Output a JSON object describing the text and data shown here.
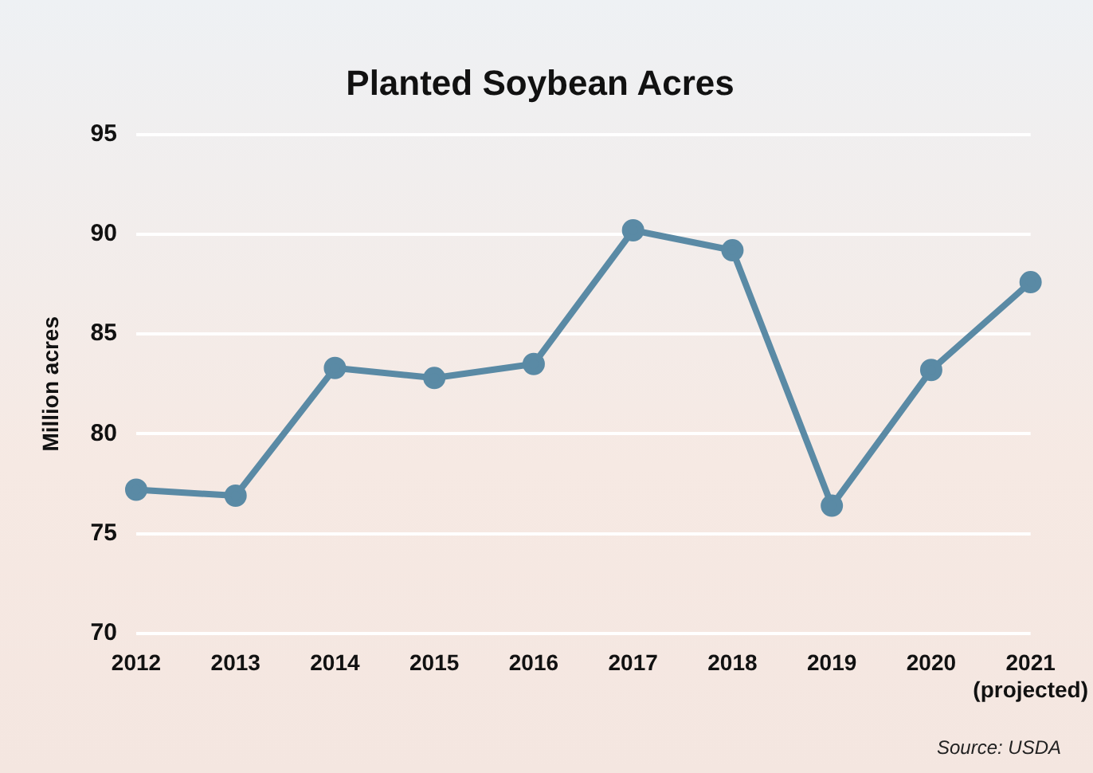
{
  "chart_data": {
    "type": "line",
    "title": "Planted Soybean Acres",
    "ylabel": "Million acres",
    "categories": [
      "2012",
      "2013",
      "2014",
      "2015",
      "2016",
      "2017",
      "2018",
      "2019",
      "2020",
      "2021 (projected)"
    ],
    "series": [
      {
        "color": "#5a8aa5",
        "values": [
          77.2,
          76.9,
          83.3,
          82.8,
          83.5,
          90.2,
          89.2,
          76.4,
          83.2,
          87.6
        ]
      }
    ],
    "ylim": [
      70,
      95
    ],
    "yticks": [
      70,
      75,
      80,
      85,
      90,
      95
    ],
    "grid": "y",
    "legend": false,
    "marker": "circle",
    "line_style": "solid",
    "annotations": [
      "Source: USDA"
    ]
  }
}
